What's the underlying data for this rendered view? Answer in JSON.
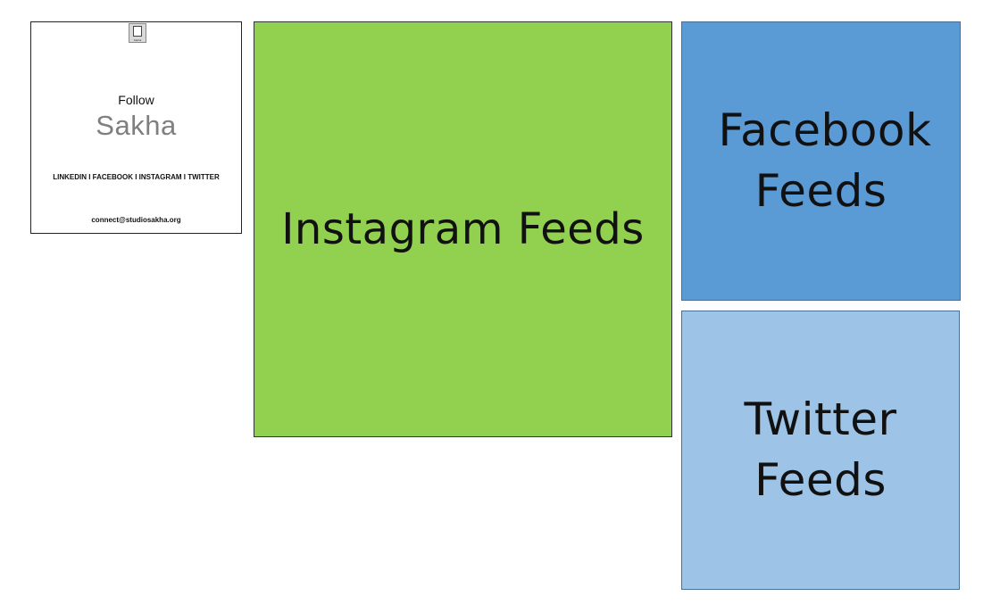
{
  "follow_card": {
    "logo_text": "Sakha",
    "follow_label": "Follow",
    "brand_name": "Sakha",
    "social_links": "LINKEDIN I FACEBOOK I INSTAGRAM I TWITTER",
    "contact_email": "connect@studiosakha.org"
  },
  "panels": {
    "instagram": {
      "label": "Instagram Feeds",
      "color": "#92d050"
    },
    "facebook": {
      "label": "Facebook Feeds",
      "color": "#5b9bd5"
    },
    "twitter": {
      "label": "Twitter Feeds",
      "color": "#9dc3e6"
    }
  }
}
